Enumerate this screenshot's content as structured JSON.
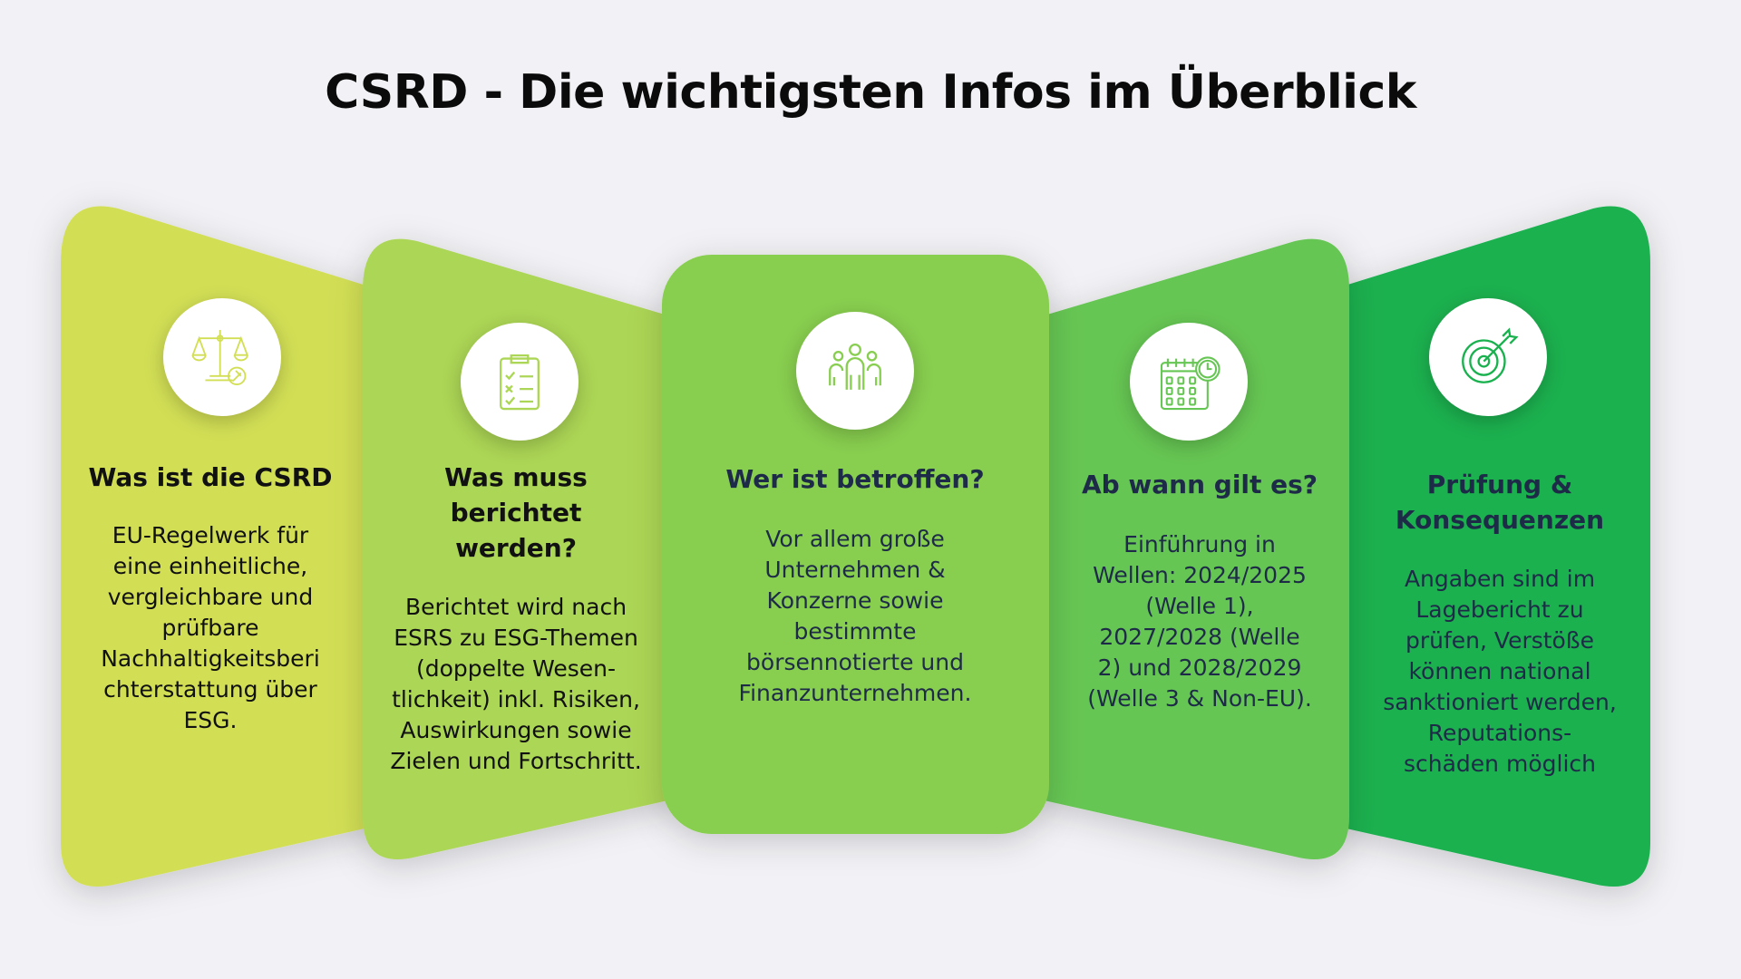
{
  "title": "CSRD - Die wichtigsten Infos im Überblick",
  "colors": {
    "panel1": "#d2df55",
    "panel2": "#acd655",
    "panel3": "#88ce50",
    "panel4": "#66c653",
    "panel5": "#1ab14f"
  },
  "panels": [
    {
      "icon": "scales-gavel-icon",
      "heading": "Was ist die CSRD",
      "body": "EU-Regelwerk für\neine einheitliche,\nvergleichbare und\nprüfbare\nNachhaltigkeitsberi\nchterstattung über\nESG."
    },
    {
      "icon": "clipboard-checklist-icon",
      "heading": "Was muss\nberichtet\nwerden?",
      "body": "Berichtet wird nach\nESRS zu ESG-Themen\n(doppelte Wesen-\ntlichkeit) inkl. Risiken,\nAuswirkungen sowie\nZielen und Fortschritt."
    },
    {
      "icon": "people-group-icon",
      "heading": "Wer ist betroffen?",
      "body": "Vor allem große\nUnternehmen &\nKonzerne sowie\nbestimmte\nbörsennotierte und\nFinanzunternehmen."
    },
    {
      "icon": "calendar-clock-icon",
      "heading": "Ab wann gilt es?",
      "body": "Einführung in\nWellen: 2024/2025\n(Welle 1),\n2027/2028 (Welle\n2) und 2028/2029\n(Welle 3 & Non-EU)."
    },
    {
      "icon": "target-arrow-icon",
      "heading": "Prüfung &\nKonsequenzen",
      "body": "Angaben sind im\nLagebericht zu\nprüfen, Verstöße\nkönnen national\nsanktioniert werden,\nReputations-\nschäden möglich"
    }
  ]
}
